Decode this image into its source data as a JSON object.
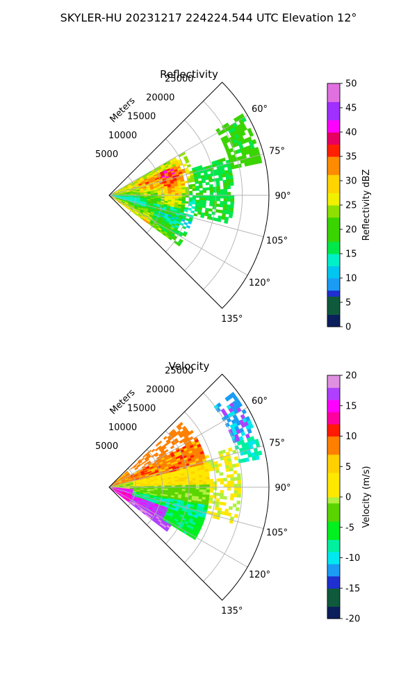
{
  "figure_title": "SKYLER-HU  20231217  224224.544 UTC Elevation 12°",
  "chart_data": [
    {
      "type": "heatmap",
      "title": "Reflectivity",
      "projection": "polar-sector",
      "azimuth_range_deg": [
        45,
        135
      ],
      "range_max_m": 30000,
      "range_label": "Meters",
      "range_ticks": [
        5000,
        10000,
        15000,
        20000,
        25000
      ],
      "azimuth_ticks": [
        60,
        75,
        90,
        105,
        120,
        135
      ],
      "azimuth_tick_labels": [
        "60°",
        "75°",
        "90°",
        "105°",
        "120°",
        "135°"
      ],
      "grid": true,
      "colorbar": {
        "label": "Reflectivity dBZ",
        "min": 0,
        "max": 50,
        "ticks": [
          0,
          5,
          10,
          15,
          20,
          25,
          30,
          35,
          40,
          45,
          50
        ],
        "stops": [
          {
            "v": 0,
            "c": "#0a1f5c"
          },
          {
            "v": 3,
            "c": "#0f5a3c"
          },
          {
            "v": 6,
            "c": "#1f2fd0"
          },
          {
            "v": 8,
            "c": "#1a9cf5"
          },
          {
            "v": 10,
            "c": "#00c6f0"
          },
          {
            "v": 12,
            "c": "#00f0c8"
          },
          {
            "v": 15,
            "c": "#00e84a"
          },
          {
            "v": 18,
            "c": "#3ad400"
          },
          {
            "v": 22,
            "c": "#8ee000"
          },
          {
            "v": 25,
            "c": "#f0f000"
          },
          {
            "v": 28,
            "c": "#ffd400"
          },
          {
            "v": 31,
            "c": "#ff8c00"
          },
          {
            "v": 35,
            "c": "#ff2000"
          },
          {
            "v": 38,
            "c": "#e80060"
          },
          {
            "v": 40,
            "c": "#ff00ff"
          },
          {
            "v": 43,
            "c": "#a030ff"
          },
          {
            "v": 46,
            "c": "#e070e0"
          },
          {
            "v": 50,
            "c": "#ffe0ff"
          }
        ]
      }
    },
    {
      "type": "heatmap",
      "title": "Velocity",
      "projection": "polar-sector",
      "azimuth_range_deg": [
        45,
        135
      ],
      "range_max_m": 30000,
      "range_label": "Meters",
      "range_ticks": [
        5000,
        10000,
        15000,
        20000,
        25000
      ],
      "azimuth_ticks": [
        60,
        75,
        90,
        105,
        120,
        135
      ],
      "azimuth_tick_labels": [
        "60°",
        "75°",
        "90°",
        "105°",
        "120°",
        "135°"
      ],
      "grid": true,
      "colorbar": {
        "label": "Velocity (m/s)",
        "min": -20,
        "max": 20,
        "ticks": [
          -20,
          -15,
          -10,
          -5,
          0,
          5,
          10,
          15,
          20
        ],
        "stops": [
          {
            "v": -20,
            "c": "#0a1f5c"
          },
          {
            "v": -17.5,
            "c": "#0f5a3c"
          },
          {
            "v": -15,
            "c": "#1f2fd0"
          },
          {
            "v": -13,
            "c": "#1a9cf5"
          },
          {
            "v": -11,
            "c": "#00e8f0"
          },
          {
            "v": -9,
            "c": "#00f0a0"
          },
          {
            "v": -7,
            "c": "#00f020"
          },
          {
            "v": -4,
            "c": "#5ad400"
          },
          {
            "v": -1,
            "c": "#b0f040"
          },
          {
            "v": 0,
            "c": "#ffe800"
          },
          {
            "v": 4,
            "c": "#ffd000"
          },
          {
            "v": 7,
            "c": "#ff8000"
          },
          {
            "v": 10,
            "c": "#ff1a00"
          },
          {
            "v": 12,
            "c": "#ff00a0"
          },
          {
            "v": 14,
            "c": "#ff00ff"
          },
          {
            "v": 16,
            "c": "#b040ff"
          },
          {
            "v": 18,
            "c": "#e090e0"
          },
          {
            "v": 20,
            "c": "#ffe0ff"
          }
        ]
      }
    }
  ]
}
